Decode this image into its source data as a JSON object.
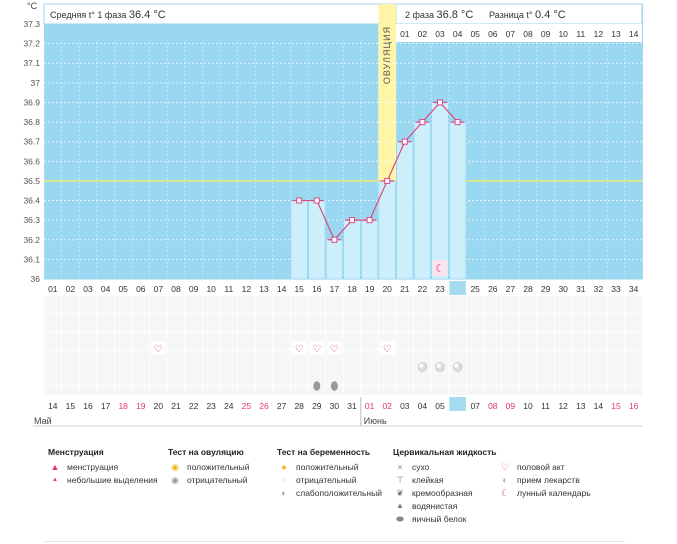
{
  "header": {
    "unit": "°C",
    "phase1_label": "Средняя t° 1 фаза",
    "phase1_value": "36.4 °C",
    "phase2_label": "2 фаза",
    "phase2_value": "36.8 °C",
    "diff_label": "Разница t°",
    "diff_value": "0.4 °C"
  },
  "ovulation_label": "ОВУЛЯЦИЯ",
  "chart_data": {
    "type": "bar",
    "ylim": [
      36,
      37.3
    ],
    "y_ticks": [
      "37.3",
      "37.2",
      "37.1",
      "37",
      "36.9",
      "36.8",
      "36.7",
      "36.6",
      "36.5",
      "36.4",
      "36.3",
      "36.2",
      "36.1",
      "36"
    ],
    "coverline": 36.5,
    "cycle_days": [
      "01",
      "02",
      "03",
      "04",
      "05",
      "06",
      "07",
      "08",
      "09",
      "10",
      "11",
      "12",
      "13",
      "14",
      "15",
      "16",
      "17",
      "18",
      "19",
      "20",
      "21",
      "22",
      "23",
      "24",
      "25",
      "26",
      "27",
      "28",
      "29",
      "30",
      "31",
      "32",
      "33",
      "34"
    ],
    "phase2_days": [
      "01",
      "02",
      "03",
      "04",
      "05",
      "06",
      "07",
      "08",
      "09",
      "10",
      "11",
      "12",
      "13",
      "14"
    ],
    "ovulation_day": 20,
    "current_day": 24,
    "temperatures": [
      {
        "day": 15,
        "temp": 36.4
      },
      {
        "day": 16,
        "temp": 36.4
      },
      {
        "day": 17,
        "temp": 36.2
      },
      {
        "day": 18,
        "temp": 36.3
      },
      {
        "day": 19,
        "temp": 36.3
      },
      {
        "day": 20,
        "temp": 36.5
      },
      {
        "day": 21,
        "temp": 36.7
      },
      {
        "day": 22,
        "temp": 36.8
      },
      {
        "day": 23,
        "temp": 36.9
      },
      {
        "day": 24,
        "temp": 36.8
      }
    ],
    "moon_day": 23,
    "intercourse_days": [
      7,
      15,
      16,
      17,
      20
    ],
    "medication_days": [
      22,
      23,
      24
    ],
    "fluid_days": [
      16,
      17
    ],
    "dates": [
      "14",
      "15",
      "16",
      "17",
      "18",
      "19",
      "20",
      "21",
      "22",
      "23",
      "24",
      "25",
      "26",
      "27",
      "28",
      "29",
      "30",
      "31",
      "01",
      "02",
      "03",
      "04",
      "05",
      "06",
      "07",
      "08",
      "09",
      "10",
      "11",
      "12",
      "13",
      "14",
      "15",
      "16"
    ],
    "weekend_date_indices": [
      4,
      5,
      11,
      12,
      18,
      19,
      25,
      26,
      32,
      33
    ],
    "today_date_index": 23,
    "month1": "Май",
    "month2": "Июнь",
    "month2_start_index": 18,
    "colors": {
      "follicular": "#9ad8f2",
      "luteal": "#ffffff",
      "ovulation": "#fff5a6",
      "bar": "#cdeefb",
      "bar_border": "#86cfee",
      "line": "#d94b84",
      "coverline": "#f2ea6b",
      "weekend": "#e0366d",
      "today": "#a6dcf2"
    }
  },
  "legend": {
    "menstruation": {
      "title": "Менструация",
      "items": [
        {
          "label": "менструация",
          "icon": "drop-icon"
        },
        {
          "label": "небольшие выделения",
          "icon": "small-drop-icon"
        }
      ]
    },
    "ovulation_test": {
      "title": "Тест на овуляцию",
      "items": [
        {
          "label": "положительный",
          "icon": "sun-icon"
        },
        {
          "label": "отрицательный",
          "icon": "grey-sun-icon"
        }
      ]
    },
    "pregnancy_test": {
      "title": "Тест на беременность",
      "items": [
        {
          "label": "положительный",
          "icon": "orange-circle-icon"
        },
        {
          "label": "отрицательный",
          "icon": "white-circle-icon"
        },
        {
          "label": "слабоположительный",
          "icon": "grey-circle-icon"
        }
      ]
    },
    "cervical_fluid": {
      "title": "Цервикальная жидкость",
      "items": [
        {
          "label": "сухо",
          "icon": "cross-icon"
        },
        {
          "label": "клейкая",
          "icon": "tee-icon"
        },
        {
          "label": "кремообразная",
          "icon": "blob-icon"
        },
        {
          "label": "водянистая",
          "icon": "water-drop-icon"
        },
        {
          "label": "яичный белок",
          "icon": "egg-icon"
        }
      ]
    },
    "other": {
      "items": [
        {
          "label": "половой акт",
          "icon": "heart-icon"
        },
        {
          "label": "прием лекарств",
          "icon": "pill-icon"
        },
        {
          "label": "лунный календарь",
          "icon": "moon-icon"
        }
      ]
    }
  }
}
